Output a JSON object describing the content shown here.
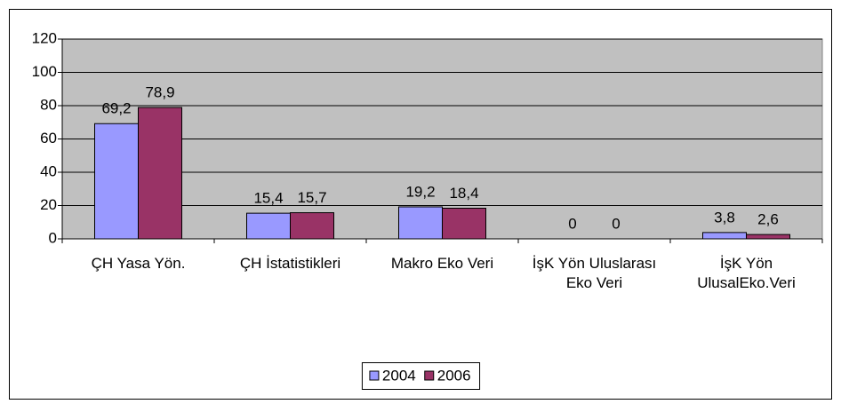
{
  "chart_data": {
    "type": "bar",
    "categories": [
      "ÇH Yasa Yön.",
      "ÇH İstatistikleri",
      "Makro Eko Veri",
      "İşK Yön Uluslarası Eko Veri",
      "İşK Yön UlusalEko.Veri"
    ],
    "series": [
      {
        "name": "2004",
        "color": "#9999ff",
        "values": [
          69.2,
          15.4,
          19.2,
          0,
          3.8
        ],
        "value_labels": [
          "69,2",
          "15,4",
          "19,2",
          "0",
          "3,8"
        ]
      },
      {
        "name": "2006",
        "color": "#993366",
        "values": [
          78.9,
          15.7,
          18.4,
          0,
          2.6
        ],
        "value_labels": [
          "78,9",
          "15,7",
          "18,4",
          "0",
          "2,6"
        ]
      }
    ],
    "ylim": [
      0,
      120
    ],
    "yticks": [
      0,
      20,
      40,
      60,
      80,
      100,
      120
    ],
    "grid": true,
    "legend": "bottom"
  }
}
